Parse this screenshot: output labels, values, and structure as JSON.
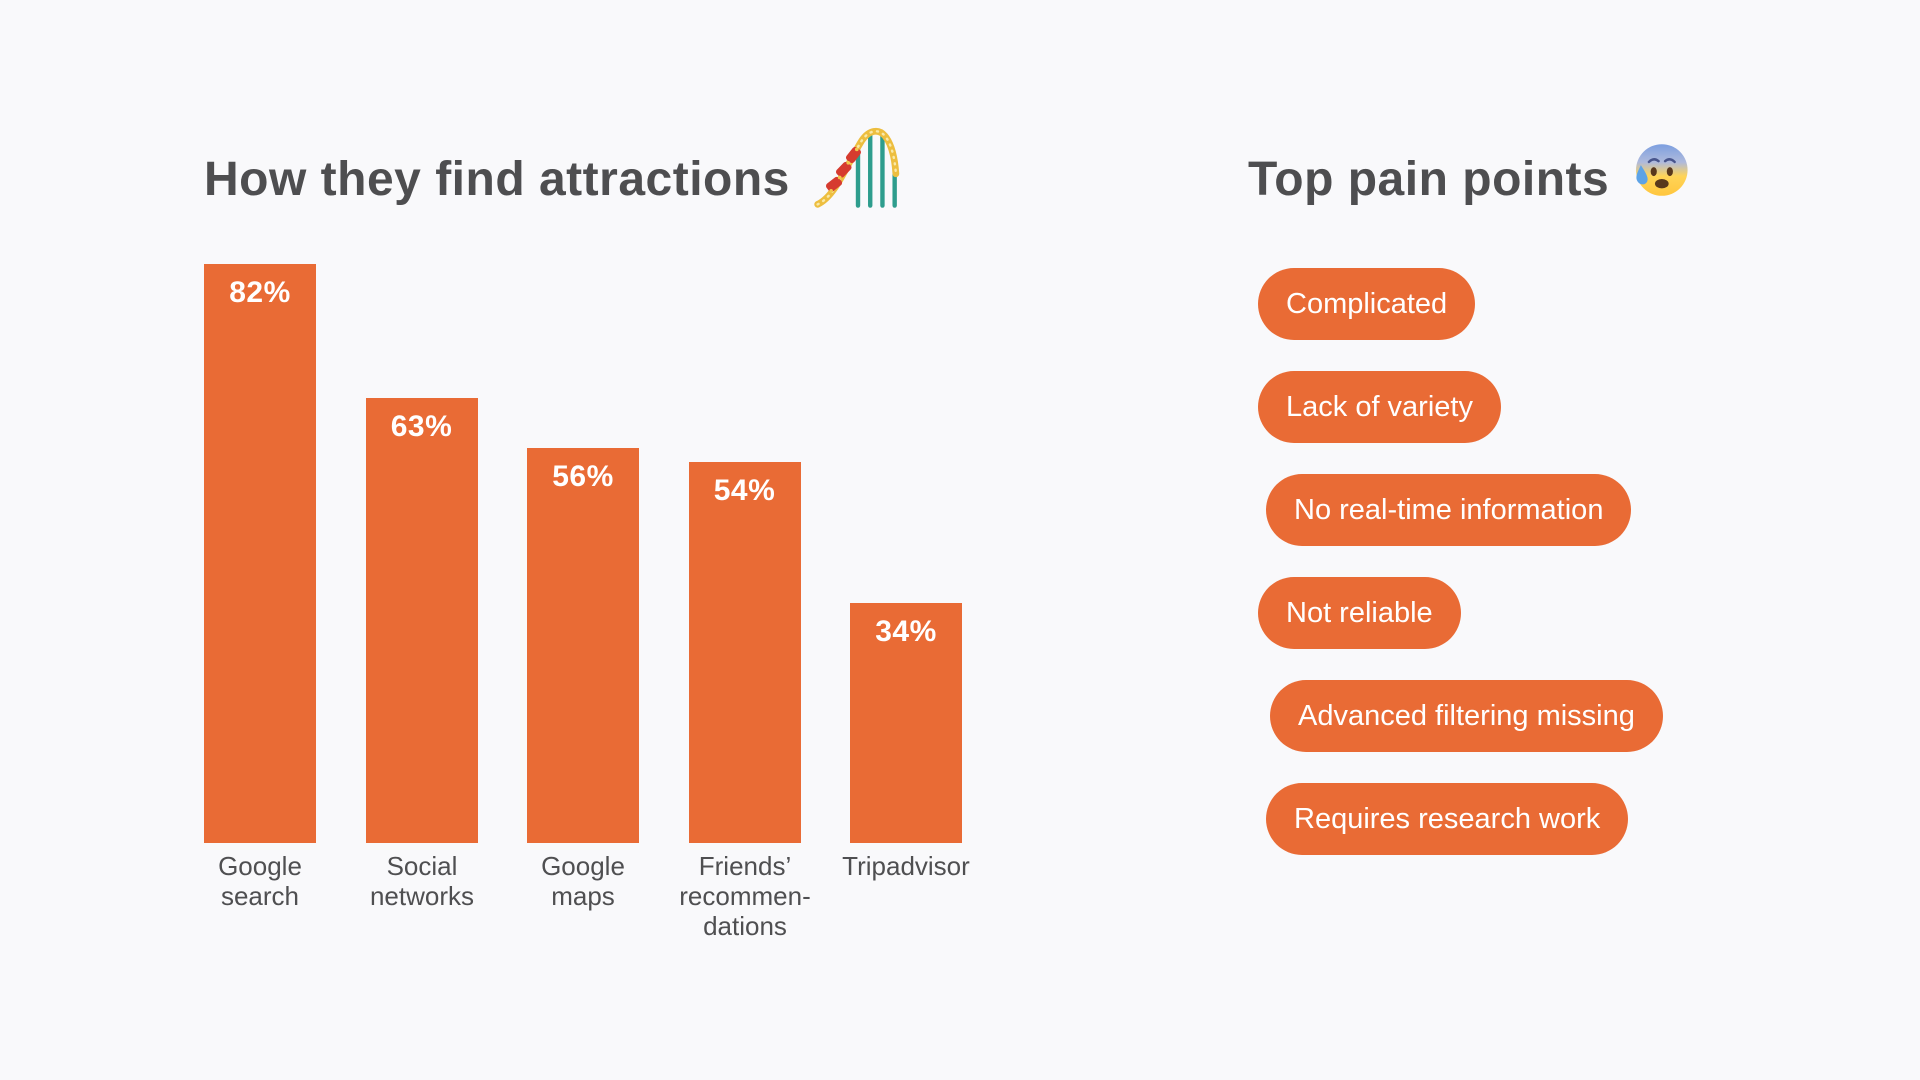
{
  "colors": {
    "background": "#F9F9FB",
    "accent": "#E96B35",
    "heading_text": "#4E4E50",
    "category_label_text": "#4F4F51",
    "on_accent_text": "#FFFFFF"
  },
  "left_panel": {
    "title": "How they find attractions",
    "title_icon": "roller-coaster"
  },
  "right_panel": {
    "title": "Top pain points",
    "title_icon": "anxious-face-with-sweat",
    "pills": [
      {
        "label": "Complicated"
      },
      {
        "label": "Lack of variety"
      },
      {
        "label": "No real-time information"
      },
      {
        "label": "Not reliable"
      },
      {
        "label": "Advanced filtering missing"
      },
      {
        "label": "Requires research work"
      }
    ]
  },
  "chart_data": {
    "type": "bar",
    "title": "How they find attractions",
    "categories": [
      "Google search",
      "Social networks",
      "Google maps",
      "Friends’ recommendations",
      "Tripadvisor"
    ],
    "category_display_lines": [
      [
        "Google",
        "search"
      ],
      [
        "Social",
        "networks"
      ],
      [
        "Google",
        "maps"
      ],
      [
        "Friends’",
        "recommen-",
        "dations"
      ],
      [
        "Tripadvisor"
      ]
    ],
    "values": [
      82,
      63,
      56,
      54,
      34
    ],
    "value_labels": [
      "82%",
      "63%",
      "56%",
      "54%",
      "34%"
    ],
    "unit": "%",
    "ylim": [
      0,
      100
    ],
    "grid": false,
    "legend": false,
    "bar_color": "#E96B35",
    "value_label_position": "inside-top",
    "value_label_color": "#FFFFFF"
  }
}
